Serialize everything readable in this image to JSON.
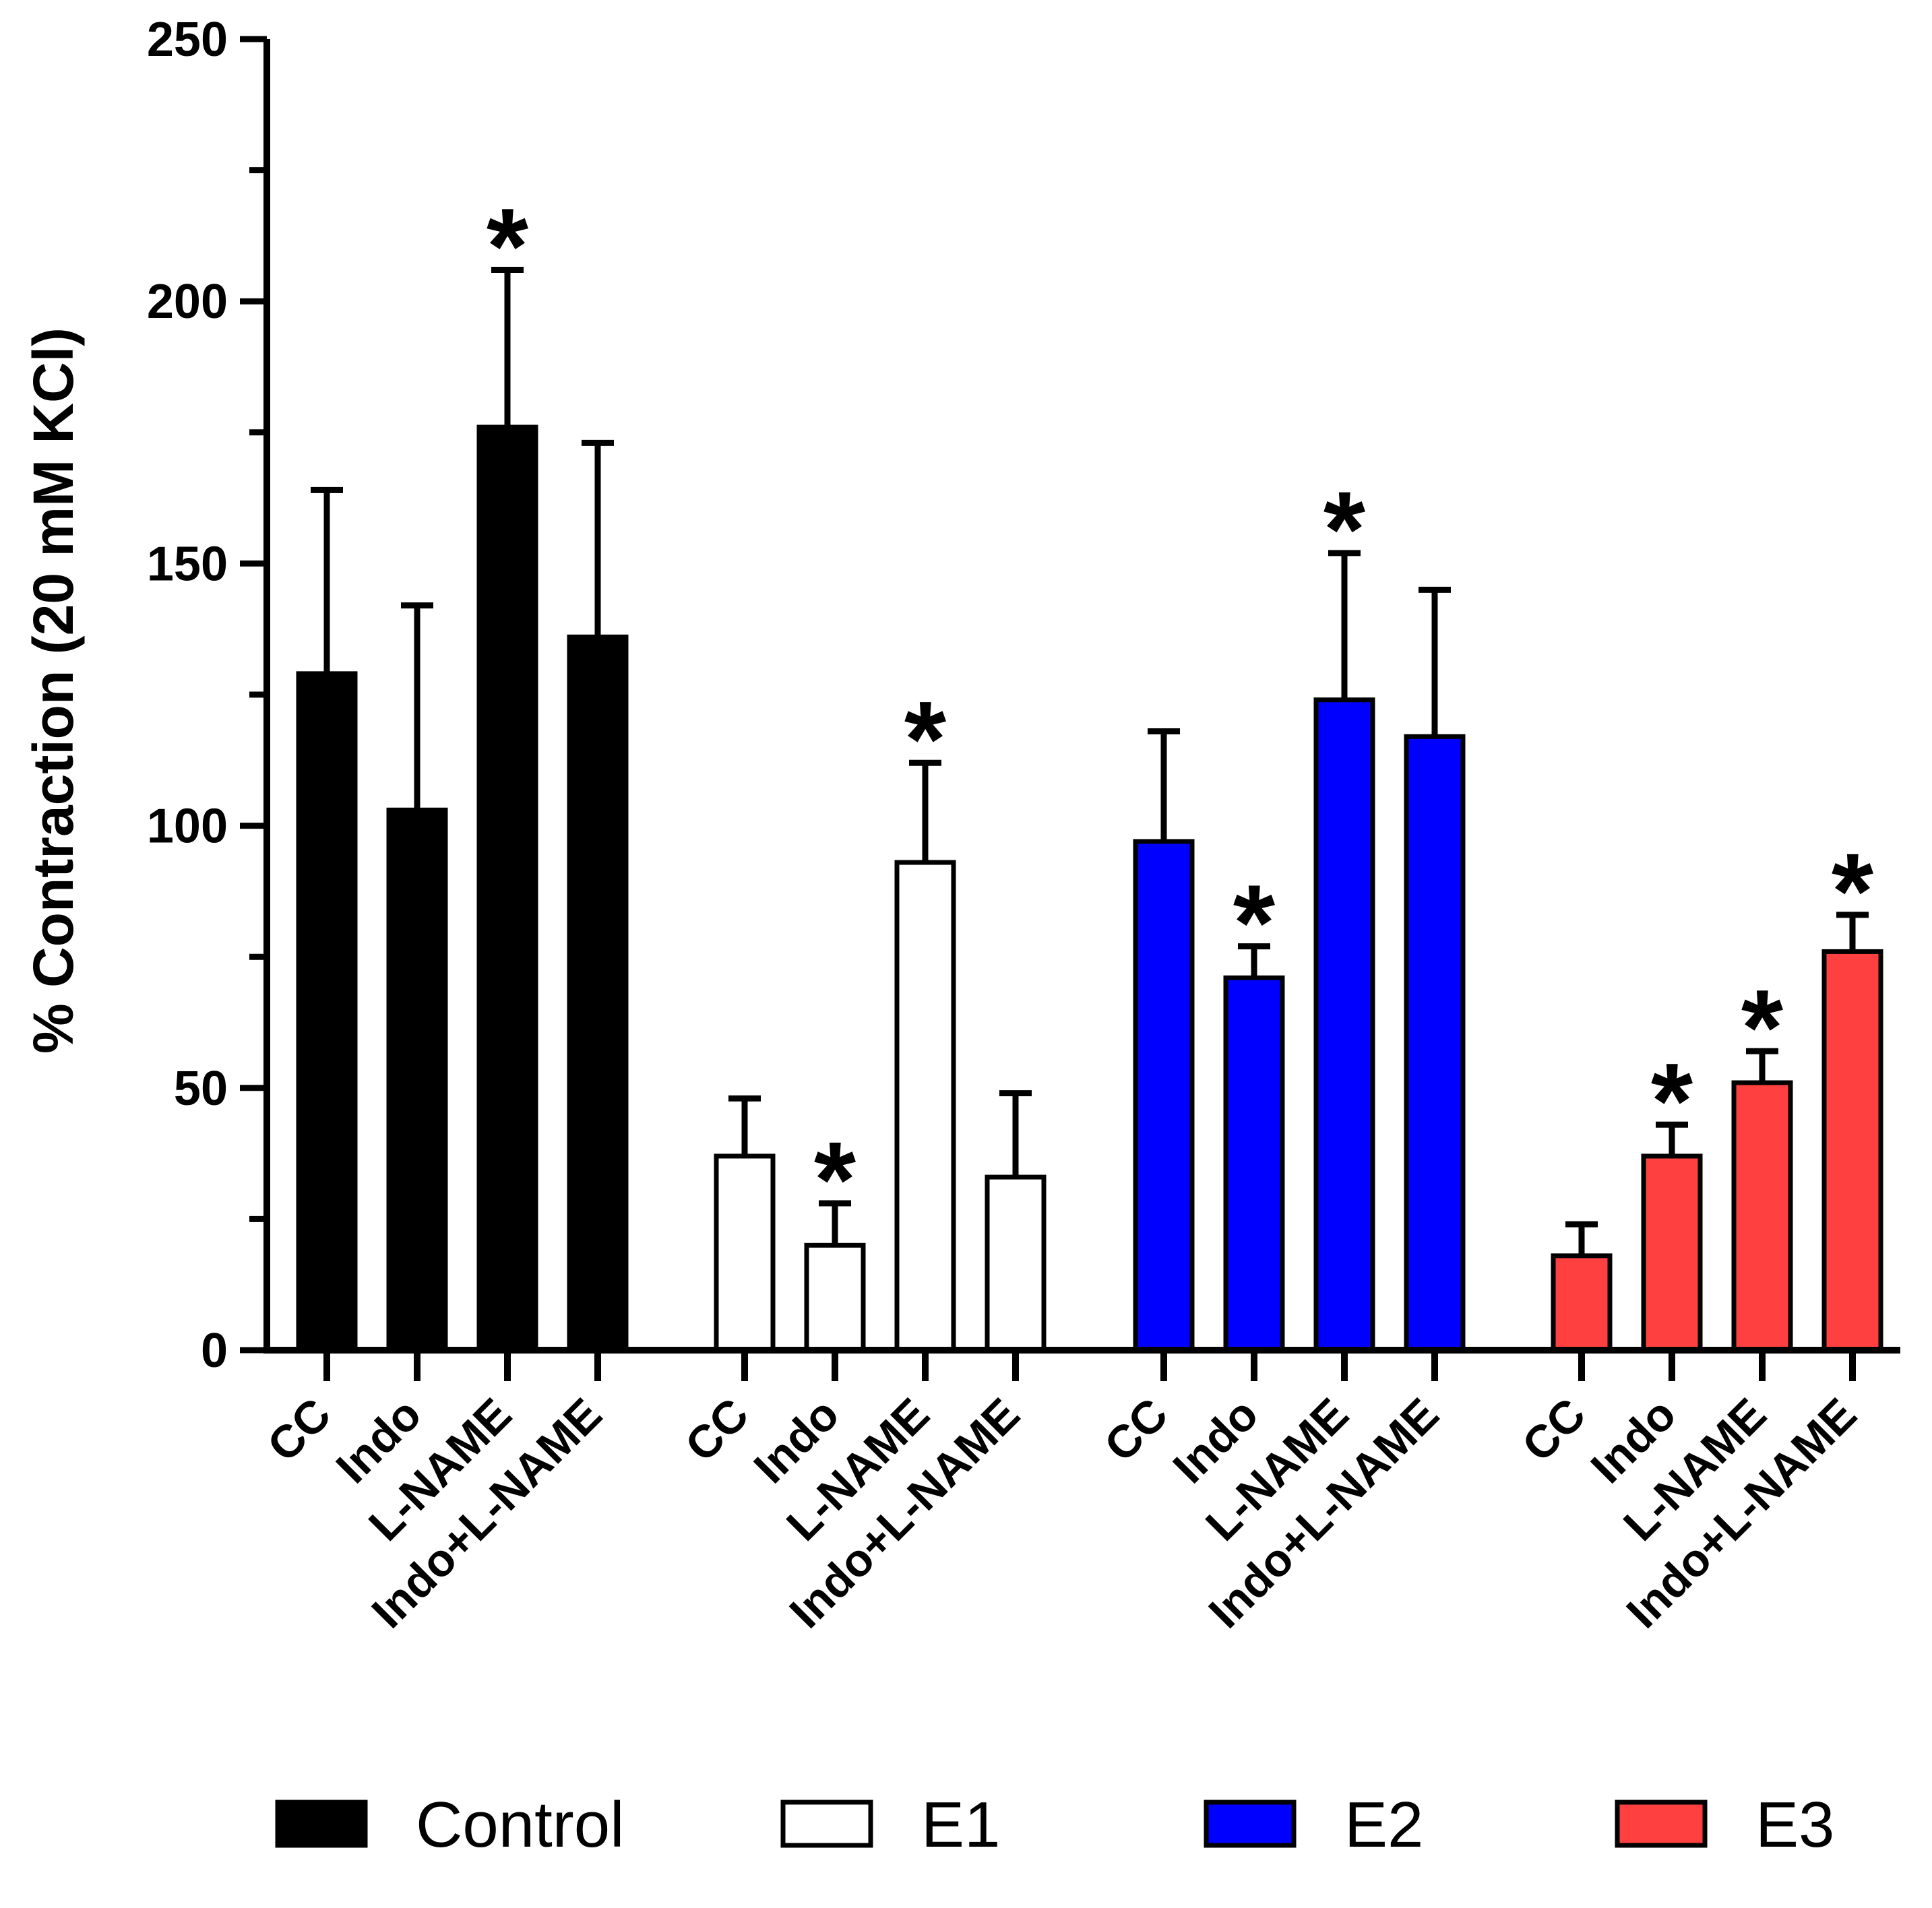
{
  "chart_data": {
    "type": "bar",
    "ylabel": "% Contraction (20 mM KCl)",
    "ylim": [
      0,
      250
    ],
    "yticks": [
      0,
      50,
      100,
      150,
      200,
      250
    ],
    "categories": [
      "CC",
      "Indo",
      "L-NAME",
      "Indo+L-NAME"
    ],
    "series": [
      {
        "name": "Control",
        "color": "#000000",
        "values": [
          129,
          103,
          176,
          136
        ],
        "errors": [
          35,
          39,
          30,
          37
        ],
        "significant": [
          false,
          false,
          true,
          false
        ]
      },
      {
        "name": "E1",
        "color": "#ffffff",
        "values": [
          37,
          20,
          93,
          33
        ],
        "errors": [
          11,
          8,
          19,
          16
        ],
        "significant": [
          false,
          true,
          true,
          false
        ]
      },
      {
        "name": "E2",
        "color": "#0000ff",
        "values": [
          97,
          71,
          124,
          117
        ],
        "errors": [
          21,
          6,
          28,
          28
        ],
        "significant": [
          false,
          true,
          true,
          false
        ]
      },
      {
        "name": "E3",
        "color": "#ff4040",
        "values": [
          18,
          37,
          51,
          76
        ],
        "errors": [
          6,
          6,
          6,
          7
        ],
        "significant": [
          false,
          true,
          true,
          true
        ]
      }
    ],
    "significance_marker": "*",
    "legend_position": "bottom"
  }
}
